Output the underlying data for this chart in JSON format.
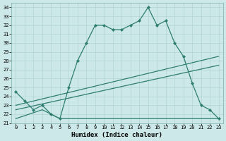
{
  "title": "",
  "xlabel": "Humidex (Indice chaleur)",
  "xlim": [
    -0.5,
    23.5
  ],
  "ylim": [
    21,
    34.5
  ],
  "yticks": [
    21,
    22,
    23,
    24,
    25,
    26,
    27,
    28,
    29,
    30,
    31,
    32,
    33,
    34
  ],
  "xticks": [
    0,
    1,
    2,
    3,
    4,
    5,
    6,
    7,
    8,
    9,
    10,
    11,
    12,
    13,
    14,
    15,
    16,
    17,
    18,
    19,
    20,
    21,
    22,
    23
  ],
  "bg_color": "#cde8e8",
  "line_color": "#2e7d70",
  "grid_color": "#b0d4d4",
  "line1_x": [
    0,
    1,
    2,
    3,
    4,
    5,
    6,
    7,
    8,
    9,
    10,
    11,
    12,
    13,
    14,
    15,
    16,
    17,
    18,
    19,
    20,
    21,
    22,
    23
  ],
  "line1_y": [
    24.5,
    23.5,
    22.5,
    23.0,
    22.0,
    21.5,
    25.0,
    28.0,
    30.0,
    32.0,
    32.0,
    31.5,
    31.5,
    32.0,
    32.5,
    34.0,
    32.0,
    32.5,
    30.0,
    28.5,
    25.5,
    23.0,
    22.5,
    21.5
  ],
  "line2_x": [
    0,
    23
  ],
  "line2_y": [
    23.0,
    28.5
  ],
  "line3_x": [
    0,
    23
  ],
  "line3_y": [
    22.5,
    27.5
  ],
  "line4_x": [
    0,
    3,
    4,
    5,
    6,
    7,
    8,
    9,
    10,
    11,
    12,
    13,
    14,
    15,
    16,
    17,
    18,
    19,
    23
  ],
  "line4_y": [
    21.5,
    22.5,
    22.0,
    21.5,
    21.5,
    21.5,
    21.5,
    21.5,
    21.5,
    21.5,
    21.5,
    21.5,
    21.5,
    21.5,
    21.5,
    21.5,
    21.5,
    21.5,
    21.5
  ],
  "font_family": "monospace",
  "tick_fontsize": 5,
  "xlabel_fontsize": 6.5
}
